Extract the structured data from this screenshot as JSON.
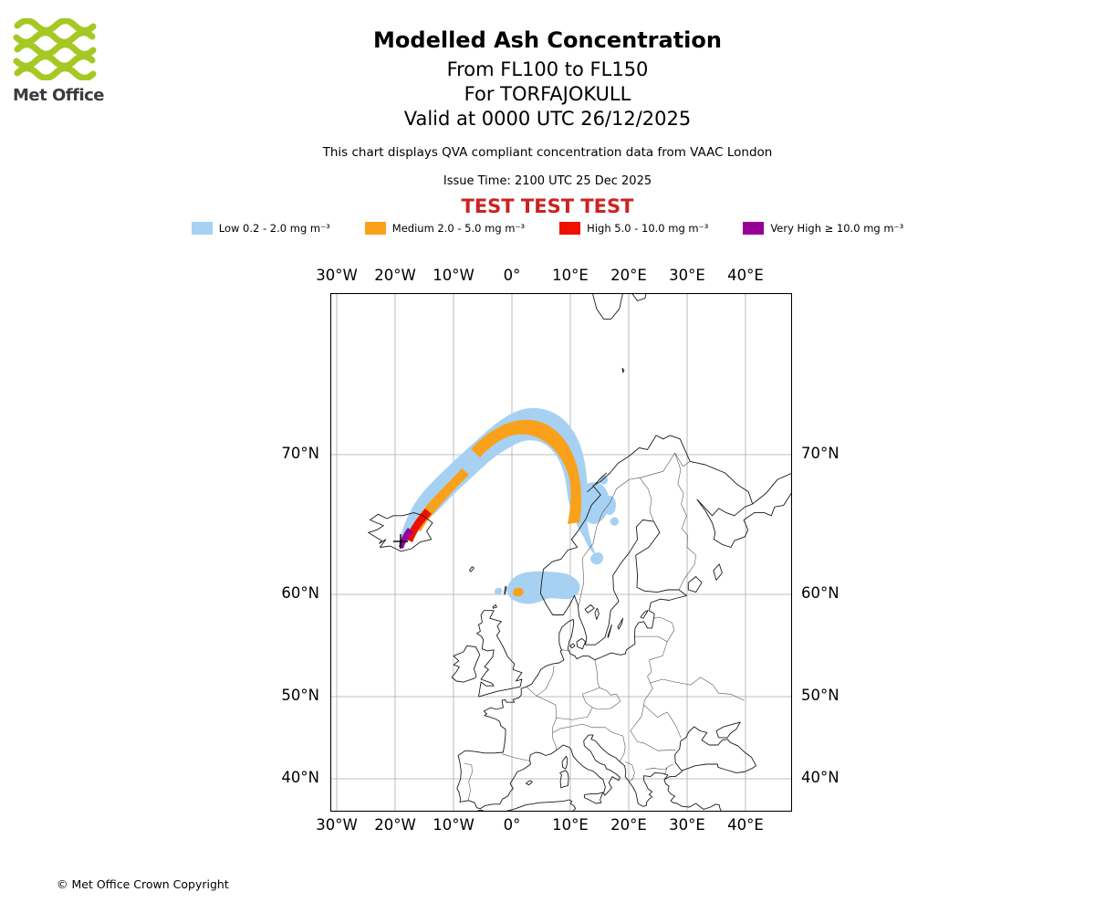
{
  "header": {
    "logo_text": "Met Office",
    "title": "Modelled Ash Concentration",
    "subtitle_fl": "From FL100 to FL150",
    "subtitle_volcano": "For TORFAJOKULL",
    "subtitle_valid": "Valid at 0000 UTC 26/12/2025",
    "note": "This chart displays QVA compliant concentration data from VAAC London",
    "issue_time": "Issue Time: 2100 UTC 25 Dec 2025",
    "test_banner": "TEST TEST TEST"
  },
  "colors": {
    "test_banner": "#CC2222",
    "logo_green": "#A6C824",
    "grid": "#aaaaaa",
    "coast": "#1a1a1a",
    "border": "#4a4a4a"
  },
  "legend": {
    "items": [
      {
        "name": "low",
        "label": "Low 0.2 - 2.0 mg m⁻³",
        "color": "#A6D1F2"
      },
      {
        "name": "medium",
        "label": "Medium 2.0 - 5.0 mg m⁻³",
        "color": "#F9A11B"
      },
      {
        "name": "high",
        "label": "High 5.0 - 10.0 mg m⁻³",
        "color": "#EE1100"
      },
      {
        "name": "very-high",
        "label": "Very High ≥ 10.0 mg m⁻³",
        "color": "#960099"
      }
    ]
  },
  "map": {
    "lon_labels": [
      "30°W",
      "20°W",
      "10°W",
      "0°",
      "10°E",
      "20°E",
      "30°E",
      "40°E"
    ],
    "lat_labels": [
      "70°N",
      "60°N",
      "50°N",
      "40°N"
    ],
    "volcano_name": "TORFAJOKULL"
  },
  "footer": {
    "copyright": "© Met Office Crown Copyright"
  }
}
